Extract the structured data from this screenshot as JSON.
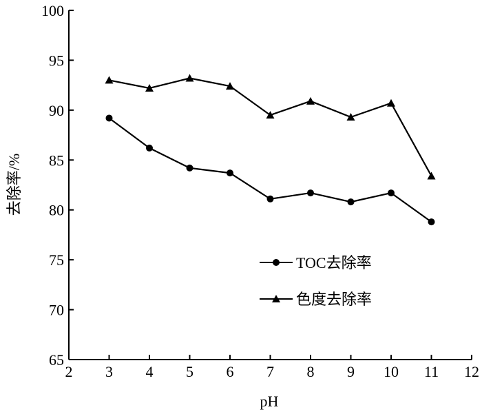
{
  "chart_data": {
    "type": "line",
    "xlabel": "pH",
    "ylabel": "去除率/%",
    "xlim": [
      2,
      12
    ],
    "ylim": [
      65,
      100
    ],
    "xticks": [
      2,
      3,
      4,
      5,
      6,
      7,
      8,
      9,
      10,
      11,
      12
    ],
    "yticks": [
      65,
      70,
      75,
      80,
      85,
      90,
      95,
      100
    ],
    "x": [
      3,
      4,
      5,
      6,
      7,
      8,
      9,
      10,
      11
    ],
    "series": [
      {
        "name": "TOC去除率",
        "marker": "circle",
        "values": [
          89.2,
          86.2,
          84.2,
          83.7,
          81.1,
          81.7,
          80.8,
          81.7,
          78.8
        ]
      },
      {
        "name": "色度去除率",
        "marker": "triangle",
        "values": [
          93.0,
          92.2,
          93.2,
          92.4,
          89.5,
          90.9,
          89.3,
          90.7,
          83.4
        ]
      }
    ],
    "legend_position": "center-right",
    "grid": false,
    "color": "#000000"
  }
}
